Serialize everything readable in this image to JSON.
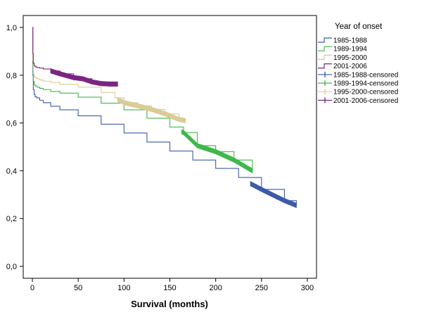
{
  "chart_data": {
    "type": "line",
    "subtype": "kaplan-meier survival curves",
    "xlabel": "Survival (months)",
    "ylabel": "",
    "xlim": [
      -10,
      310
    ],
    "ylim": [
      -0.05,
      1.05
    ],
    "xticks": [
      0,
      50,
      100,
      150,
      200,
      250,
      300
    ],
    "xtick_labels": [
      "0",
      "50",
      "100",
      "150",
      "200",
      "250",
      "300"
    ],
    "yticks": [
      0.0,
      0.2,
      0.4,
      0.6,
      0.8,
      1.0
    ],
    "ytick_labels": [
      "0,0",
      "0,2",
      "0,4",
      "0,6",
      "0,8",
      "1,0"
    ],
    "grid": false,
    "legend_title": "Year of onset",
    "legend_position": "right",
    "series": [
      {
        "name": "1985-1988",
        "color": "#3c5aa8",
        "x": [
          0,
          0.5,
          1,
          2,
          3,
          5,
          8,
          12,
          20,
          30,
          50,
          75,
          100,
          125,
          150,
          175,
          200,
          225,
          250,
          275,
          288
        ],
        "y": [
          1.0,
          0.8,
          0.74,
          0.72,
          0.71,
          0.705,
          0.695,
          0.685,
          0.67,
          0.655,
          0.63,
          0.595,
          0.558,
          0.52,
          0.483,
          0.445,
          0.41,
          0.372,
          0.322,
          0.275,
          0.255
        ]
      },
      {
        "name": "1989-1994",
        "color": "#3fb84a",
        "x": [
          0,
          0.5,
          1,
          2,
          3,
          5,
          8,
          12,
          20,
          30,
          50,
          75,
          100,
          125,
          150,
          165,
          180,
          200,
          220,
          240
        ],
        "y": [
          1.0,
          0.83,
          0.775,
          0.76,
          0.755,
          0.75,
          0.745,
          0.74,
          0.732,
          0.725,
          0.708,
          0.683,
          0.655,
          0.62,
          0.583,
          0.56,
          0.505,
          0.48,
          0.445,
          0.4
        ]
      },
      {
        "name": "1995-2000",
        "color": "#d9cc96",
        "x": [
          0,
          0.5,
          1,
          2,
          3,
          5,
          8,
          12,
          20,
          30,
          50,
          75,
          90,
          100,
          115,
          130,
          145,
          160,
          167
        ],
        "y": [
          1.0,
          0.86,
          0.805,
          0.795,
          0.79,
          0.785,
          0.78,
          0.775,
          0.77,
          0.762,
          0.75,
          0.728,
          0.705,
          0.685,
          0.672,
          0.657,
          0.638,
          0.615,
          0.61
        ]
      },
      {
        "name": "2001-2006",
        "color": "#7b2582",
        "x": [
          0,
          0.5,
          1,
          2,
          3,
          5,
          8,
          12,
          20,
          30,
          45,
          55,
          65,
          75,
          85,
          93
        ],
        "y": [
          1.0,
          0.89,
          0.85,
          0.84,
          0.835,
          0.832,
          0.83,
          0.826,
          0.818,
          0.806,
          0.79,
          0.785,
          0.772,
          0.765,
          0.763,
          0.763
        ]
      }
    ],
    "censored_segments": [
      {
        "name": "1985-1988-censored",
        "color": "#3c5aa8",
        "x_range": [
          238,
          288
        ]
      },
      {
        "name": "1989-1994-censored",
        "color": "#3fb84a",
        "x_range": [
          163,
          240
        ]
      },
      {
        "name": "1995-2000-censored",
        "color": "#d9cc96",
        "x_range": [
          93,
          167
        ]
      },
      {
        "name": "2001-2006-censored",
        "color": "#7b2582",
        "x_range": [
          20,
          93
        ]
      }
    ],
    "legend_entries": [
      {
        "label": "1985-1988",
        "color": "#3c5aa8",
        "kind": "line"
      },
      {
        "label": "1989-1994",
        "color": "#3fb84a",
        "kind": "line"
      },
      {
        "label": "1995-2000",
        "color": "#d9cc96",
        "kind": "line"
      },
      {
        "label": "2001-2006",
        "color": "#7b2582",
        "kind": "line"
      },
      {
        "label": "1985-1988-censored",
        "color": "#3c5aa8",
        "kind": "censor"
      },
      {
        "label": "1989-1994-censored",
        "color": "#3fb84a",
        "kind": "censor"
      },
      {
        "label": "1995-2000-censored",
        "color": "#d9cc96",
        "kind": "censor"
      },
      {
        "label": "2001-2006-censored",
        "color": "#7b2582",
        "kind": "censor"
      }
    ]
  }
}
